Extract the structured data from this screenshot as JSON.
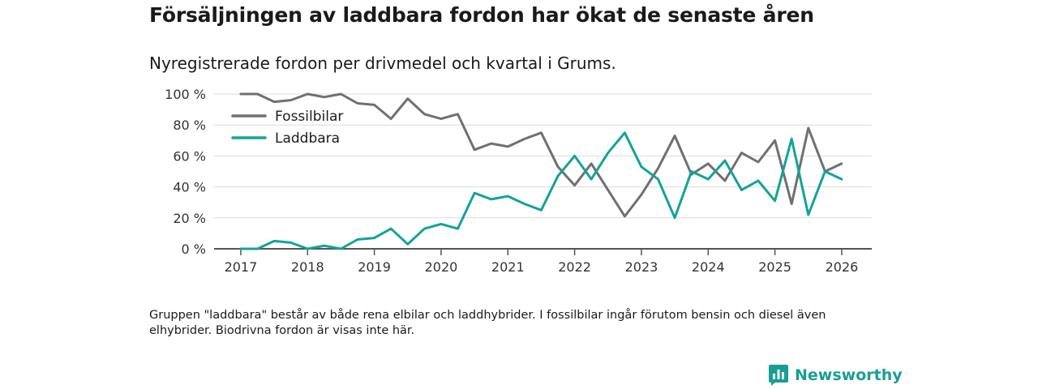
{
  "header": {
    "title": "Försäljningen av laddbara fordon har ökat de senaste åren",
    "subtitle": "Nyregistrerade fordon per drivmedel och kvartal i Grums."
  },
  "footnote": "Gruppen \"laddbara\" består av både rena elbilar och laddhybrider. I fossilbilar ingår förutom bensin och diesel även elhybrider. Biodrivna fordon är visas inte här.",
  "brand": {
    "name": "Newsworthy",
    "icon": "newsworthy-logo-icon",
    "color": "#199e96"
  },
  "chart_data": {
    "type": "line",
    "title": "Försäljningen av laddbara fordon har ökat de senaste åren",
    "subtitle": "Nyregistrerade fordon per drivmedel och kvartal i Grums.",
    "xlabel": "",
    "ylabel": "",
    "x": [
      2017.0,
      2017.25,
      2017.5,
      2017.75,
      2018.0,
      2018.25,
      2018.5,
      2018.75,
      2019.0,
      2019.25,
      2019.5,
      2019.75,
      2020.0,
      2020.25,
      2020.5,
      2020.75,
      2021.0,
      2021.25,
      2021.5,
      2021.75,
      2022.0,
      2022.25,
      2022.5,
      2022.75,
      2023.0,
      2023.25,
      2023.5,
      2023.75,
      2024.0,
      2024.25,
      2024.5,
      2024.75,
      2025.0,
      2025.25,
      2025.5,
      2025.75,
      2026.0
    ],
    "xlim": [
      2016.6,
      2026.45
    ],
    "ylim": [
      0,
      100
    ],
    "x_ticks": [
      2017,
      2018,
      2019,
      2020,
      2021,
      2022,
      2023,
      2024,
      2025,
      2026
    ],
    "x_tick_labels": [
      "2017",
      "2018",
      "2019",
      "2020",
      "2021",
      "2022",
      "2023",
      "2024",
      "2025",
      "2026"
    ],
    "y_ticks": [
      0,
      20,
      40,
      60,
      80,
      100
    ],
    "y_tick_labels": [
      "0 %",
      "20 %",
      "40 %",
      "60 %",
      "80 %",
      "100 %"
    ],
    "grid": true,
    "legend_position": "top-left",
    "series": [
      {
        "name": "Fossilbilar",
        "color": "#707073",
        "values": [
          100,
          100,
          95,
          96,
          100,
          98,
          100,
          94,
          93,
          84,
          97,
          87,
          84,
          87,
          64,
          68,
          66,
          71,
          75,
          53,
          41,
          55,
          38,
          21,
          35,
          52,
          73,
          48,
          55,
          44,
          62,
          56,
          70,
          29,
          78,
          50,
          55
        ]
      },
      {
        "name": "Laddbara",
        "color": "#13a39a",
        "values": [
          0,
          0,
          5,
          4,
          0,
          2,
          0,
          6,
          7,
          13,
          3,
          13,
          16,
          13,
          36,
          32,
          34,
          29,
          25,
          47,
          60,
          45,
          62,
          75,
          53,
          45,
          20,
          50,
          45,
          57,
          38,
          44,
          31,
          71,
          22,
          50,
          45
        ]
      }
    ]
  }
}
